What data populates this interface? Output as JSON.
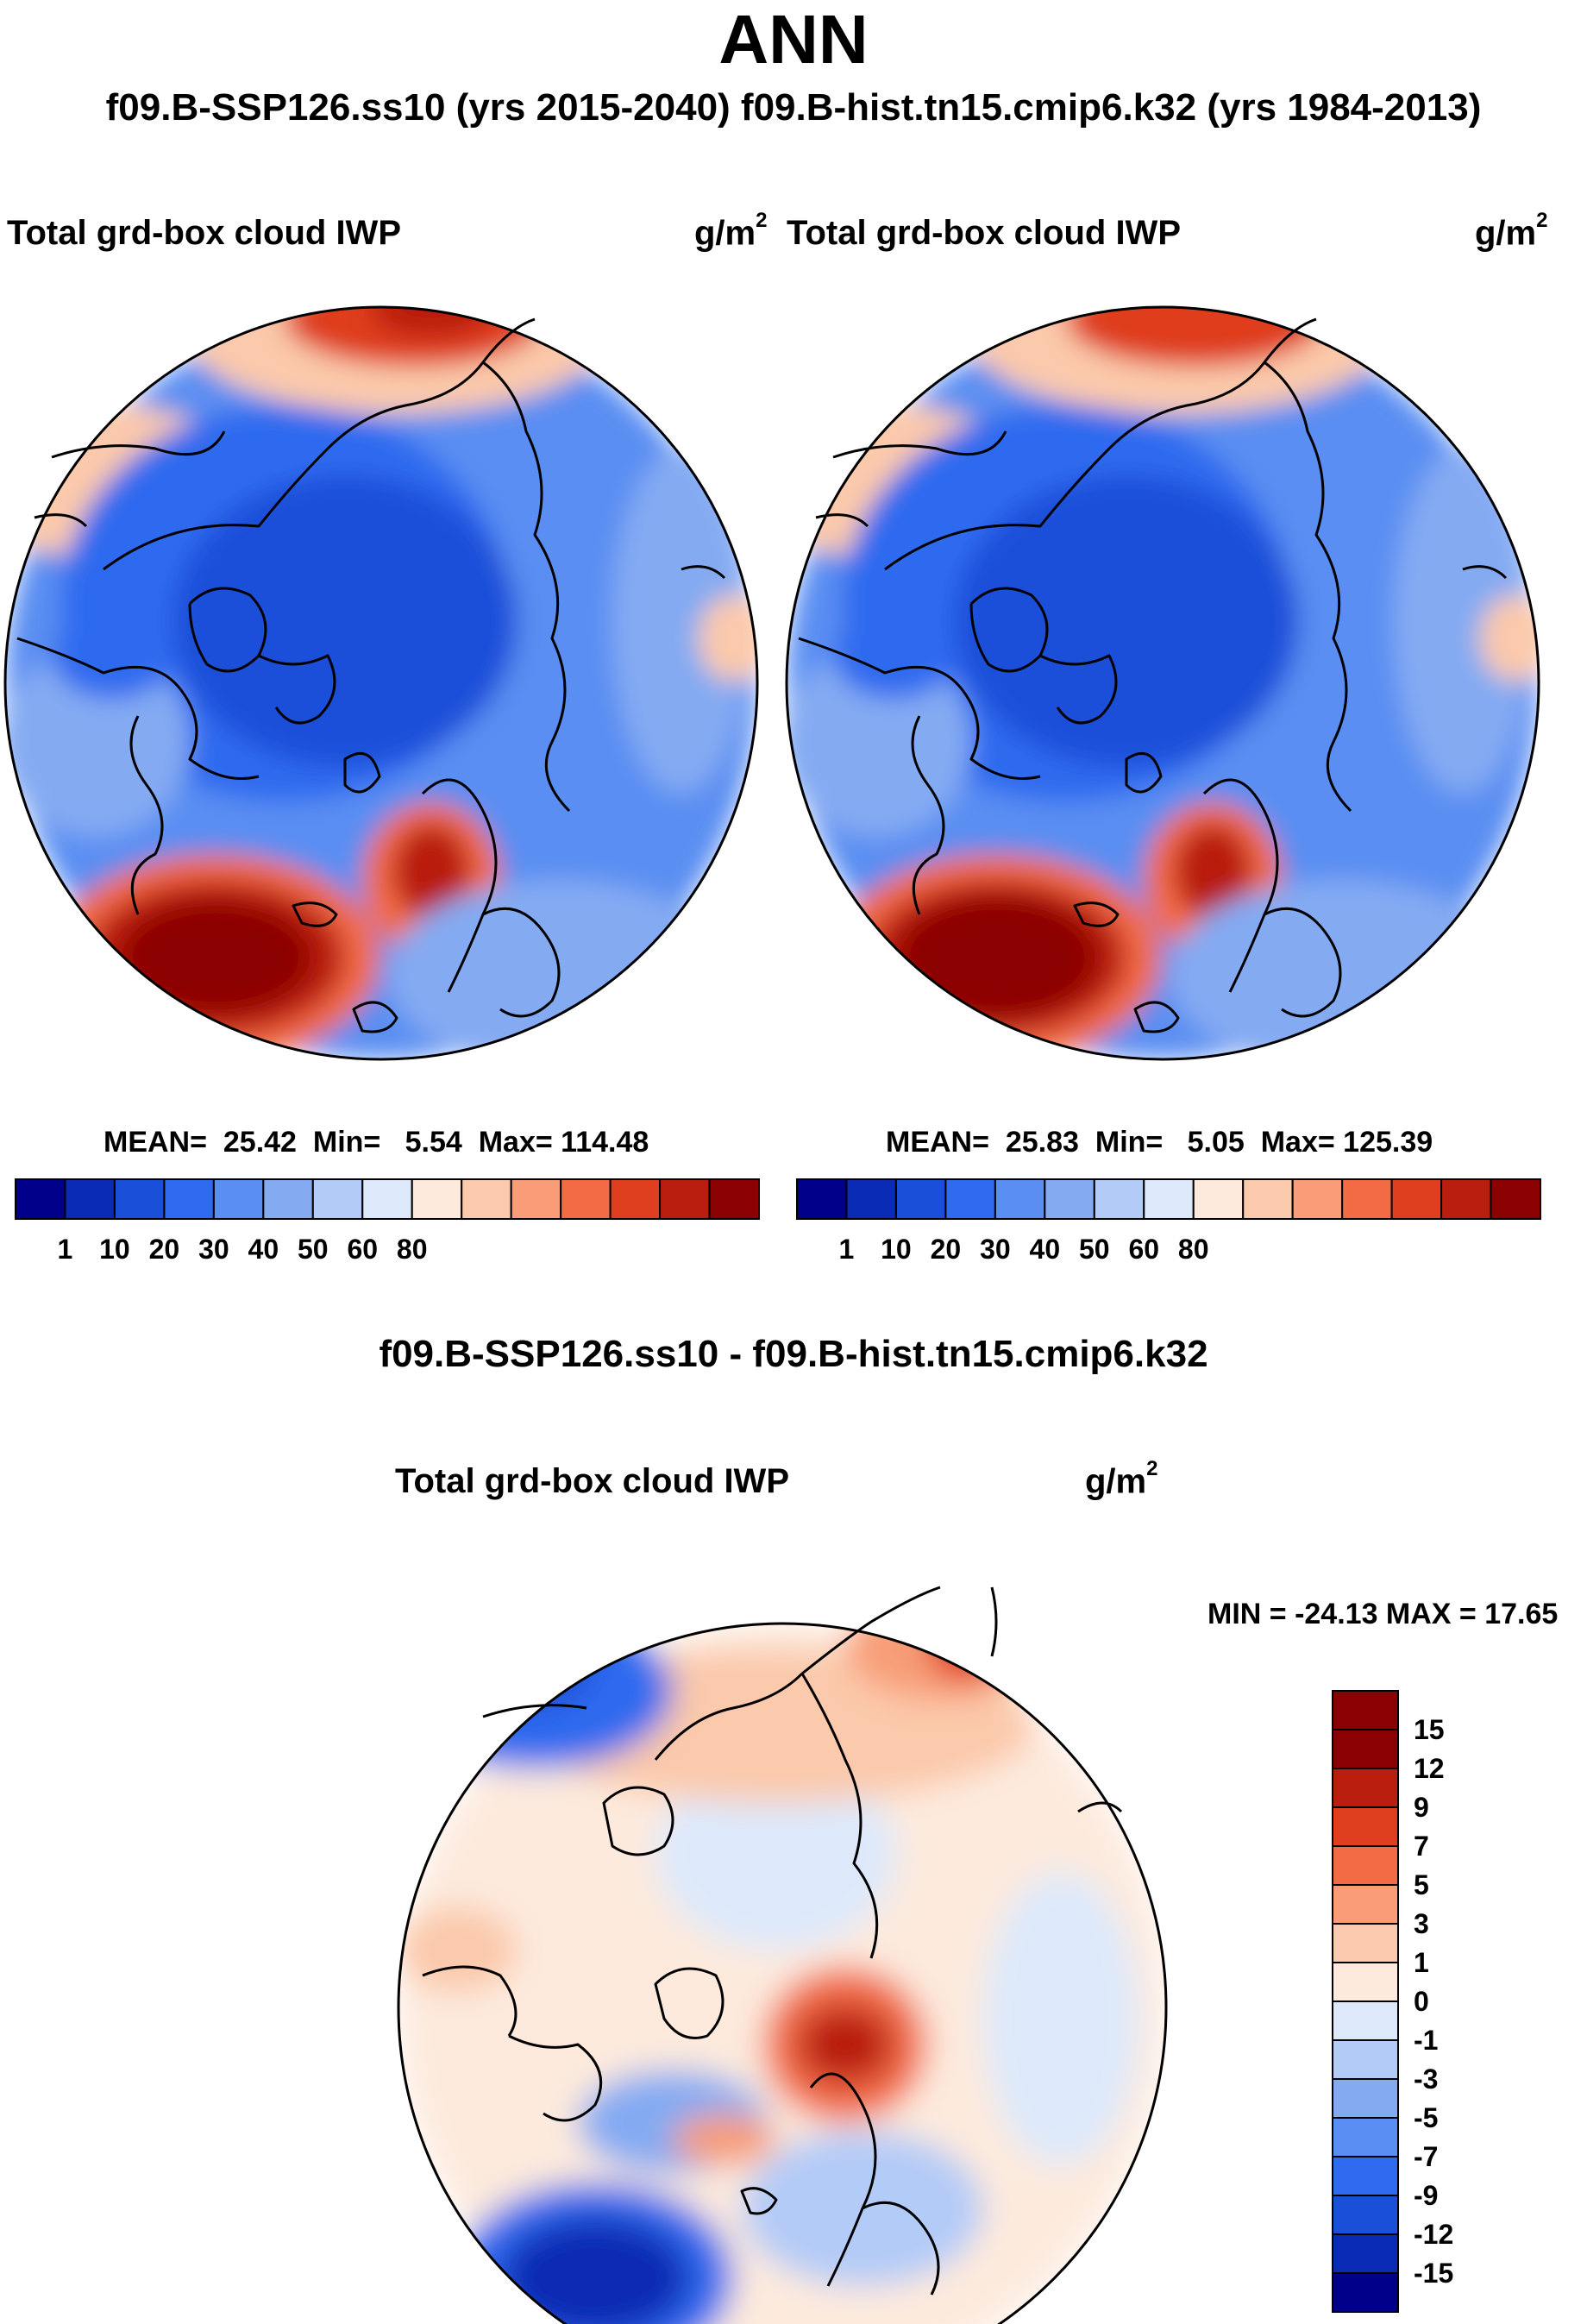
{
  "title": "ANN",
  "subtitle": "f09.B-SSP126.ss10 (yrs 2015-2040)  f09.B-hist.tn15.cmip6.k32 (yrs 1984-2013)",
  "panels": [
    {
      "variable": "Total grd-box cloud IWP",
      "units": "g/m",
      "units_exp": "2",
      "stats": {
        "mean_label": "MEAN=",
        "mean": "25.42",
        "min_label": "Min=",
        "min": "5.54",
        "max_label": "Max=",
        "max": "114.48"
      },
      "colorbar": {
        "labels": [
          "1",
          "10",
          "20",
          "30",
          "40",
          "50",
          "60",
          "80"
        ]
      }
    },
    {
      "variable": "Total grd-box cloud IWP",
      "units": "g/m",
      "units_exp": "2",
      "stats": {
        "mean_label": "MEAN=",
        "mean": "25.83",
        "min_label": "Min=",
        "min": "5.05",
        "max_label": "Max=",
        "max": "125.39"
      },
      "colorbar": {
        "labels": [
          "1",
          "10",
          "20",
          "30",
          "40",
          "50",
          "60",
          "80"
        ]
      }
    }
  ],
  "difference": {
    "title": "f09.B-SSP126.ss10 - f09.B-hist.tn15.cmip6.k32",
    "variable": "Total grd-box cloud IWP",
    "units": "g/m",
    "units_exp": "2",
    "minmax": "MIN = -24.13 MAX =  17.65",
    "colorbar": {
      "labels": [
        "15",
        "12",
        "9",
        "7",
        "5",
        "3",
        "1",
        "0",
        "-1",
        "-3",
        "-5",
        "-7",
        "-9",
        "-12",
        "-15"
      ]
    }
  },
  "colors": {
    "abs_scale": [
      "#00008b",
      "#0a2bb5",
      "#1a4fd9",
      "#2f6bef",
      "#5a8ef2",
      "#84aaf2",
      "#b3cbf7",
      "#dde9fb",
      "#fdeadd",
      "#fbc9ab",
      "#f89d77",
      "#f26b44",
      "#df3e1f",
      "#b91e0f",
      "#8b0000"
    ],
    "diff_scale": [
      "#8b0000",
      "#b91e0f",
      "#df3e1f",
      "#f26b44",
      "#f89d77",
      "#fbc9ab",
      "#fdeadd",
      "#dde9fb",
      "#b3cbf7",
      "#84aaf2",
      "#5a8ef2",
      "#2f6bef",
      "#1a4fd9",
      "#0a2bb5",
      "#00008b"
    ]
  }
}
